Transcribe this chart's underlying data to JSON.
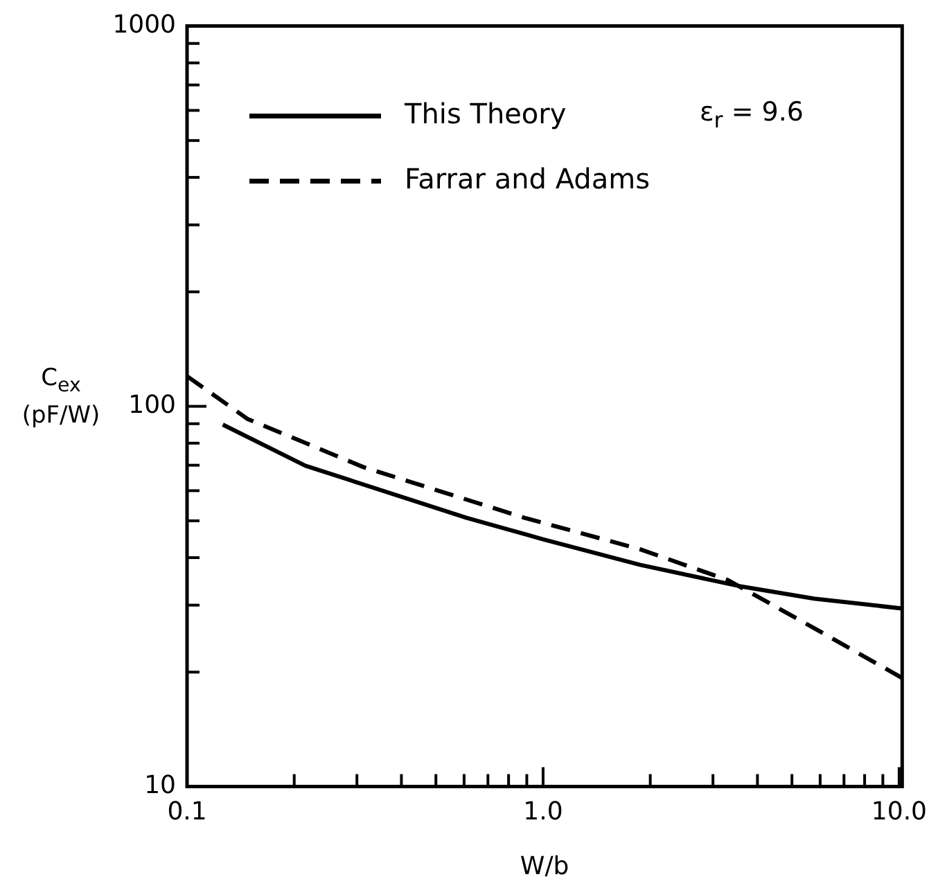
{
  "chart_data": {
    "type": "line",
    "xlabel": "W/b",
    "ylabel": "C$_{ex}$ (pF/W)",
    "annotations": [
      "ε$_{r}$ = 9.6"
    ],
    "log": "xy",
    "xlim": [
      0.1,
      10.2
    ],
    "ylim": [
      10,
      1000
    ],
    "xticks": [
      0.1,
      {
        "value": 0.2,
        "label": null
      },
      {
        "value": 0.3,
        "label": null
      },
      {
        "value": 0.4,
        "label": null
      },
      {
        "value": 0.5,
        "label": null
      },
      {
        "value": 0.6,
        "label": null
      },
      {
        "value": 0.7,
        "label": null
      },
      {
        "value": 0.8,
        "label": null
      },
      {
        "value": 0.9,
        "label": null
      },
      {
        "value": 1,
        "label": "1.0"
      },
      {
        "value": 2,
        "label": null
      },
      {
        "value": 3,
        "label": null
      },
      {
        "value": 4,
        "label": null
      },
      {
        "value": 5,
        "label": null
      },
      {
        "value": 6,
        "label": null
      },
      {
        "value": 7,
        "label": null
      },
      {
        "value": 8,
        "label": null
      },
      {
        "value": 9,
        "label": null
      },
      {
        "value": 10,
        "label": "10.0"
      }
    ],
    "yticks": [
      10,
      {
        "value": 20,
        "label": null
      },
      {
        "value": 30,
        "label": null
      },
      {
        "value": 40,
        "label": null
      },
      {
        "value": 50,
        "label": null
      },
      {
        "value": 60,
        "label": null
      },
      {
        "value": 70,
        "label": null
      },
      {
        "value": 80,
        "label": null
      },
      {
        "value": 90,
        "label": null
      },
      100,
      {
        "value": 200,
        "label": null
      },
      {
        "value": 300,
        "label": null
      },
      {
        "value": 400,
        "label": null
      },
      {
        "value": 500,
        "label": null
      },
      {
        "value": 600,
        "label": null
      },
      {
        "value": 700,
        "label": null
      },
      {
        "value": 800,
        "label": null
      },
      {
        "value": 900,
        "label": null
      },
      1000
    ],
    "grid": false,
    "legend": "top left",
    "marker": "none",
    "series": [
      {
        "name": "This Theory",
        "color": "#000000",
        "line_style": "solid",
        "x": [
          0.126,
          0.215,
          0.61,
          1.0,
          1.87,
          3.54,
          5.77,
          10.2
        ],
        "values": [
          89.5,
          69.8,
          50.9,
          44.7,
          38.3,
          33.7,
          31.2,
          29.4
        ]
      },
      {
        "name": "Farrar and Adams",
        "color": "#000000",
        "line_style": "dashed",
        "x": [
          0.1,
          0.148,
          0.313,
          0.887,
          1.87,
          3.31,
          5.77,
          10.2
        ],
        "values": [
          120,
          92.6,
          69.2,
          50.9,
          42.1,
          34.9,
          26.1,
          19.3
        ]
      }
    ]
  }
}
